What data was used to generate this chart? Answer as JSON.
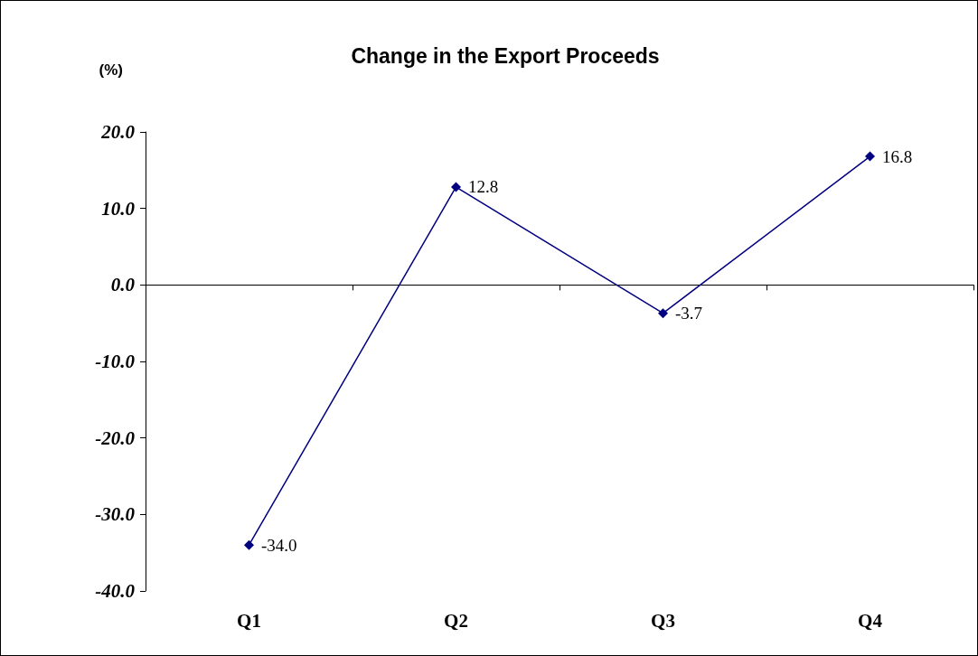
{
  "chart_data": {
    "type": "line",
    "title": "Change in the Export Proceeds",
    "ylabel": "(%)",
    "categories": [
      "Q1",
      "Q2",
      "Q3",
      "Q4"
    ],
    "series": [
      {
        "color": "#000080",
        "values": [
          -34.0,
          12.8,
          -3.7,
          16.8
        ],
        "value_labels": [
          "-34.0",
          "12.8",
          "-3.7",
          "16.8"
        ]
      }
    ],
    "ylim": [
      -40,
      20
    ],
    "yticks": [
      {
        "value": -40,
        "label": "-40.0"
      },
      {
        "value": -30,
        "label": "-30.0"
      },
      {
        "value": -20,
        "label": "-20.0"
      },
      {
        "value": -10,
        "label": "-10.0"
      },
      {
        "value": 0,
        "label": "0.0"
      },
      {
        "value": 10,
        "label": "10.0"
      },
      {
        "value": 20,
        "label": "20.0"
      }
    ],
    "marker": "diamond",
    "line_style": "solid"
  }
}
